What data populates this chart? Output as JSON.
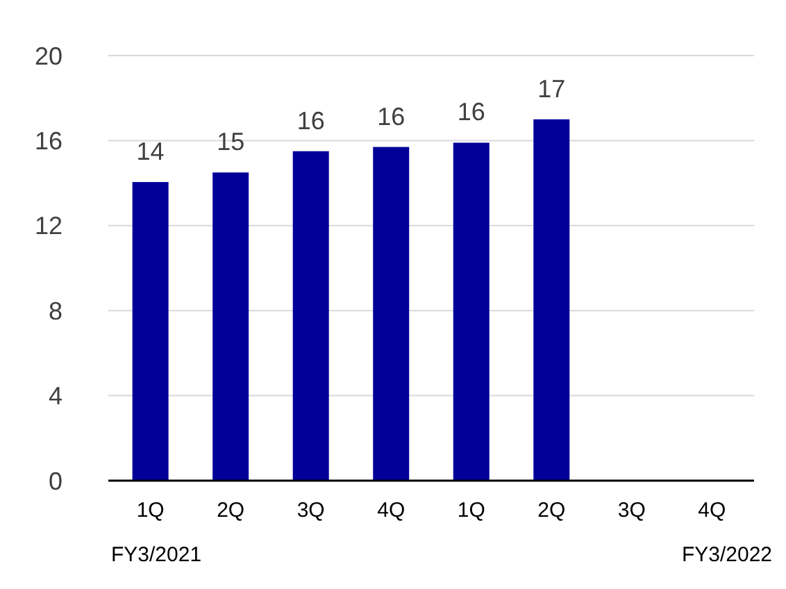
{
  "chart_data": {
    "type": "bar",
    "categories": [
      "1Q",
      "2Q",
      "3Q",
      "4Q",
      "1Q",
      "2Q",
      "3Q",
      "4Q"
    ],
    "values": [
      14.05,
      14.5,
      15.5,
      15.7,
      15.9,
      17.0,
      null,
      null
    ],
    "value_labels": [
      "14",
      "15",
      "16",
      "16",
      "16",
      "17",
      null,
      null
    ],
    "color": "#000099",
    "ylim": [
      0,
      20
    ],
    "yticks": [
      0,
      4,
      8,
      12,
      16,
      20
    ],
    "grid": "y",
    "annotations": [
      "FY3/2021",
      "FY3/2022"
    ]
  }
}
